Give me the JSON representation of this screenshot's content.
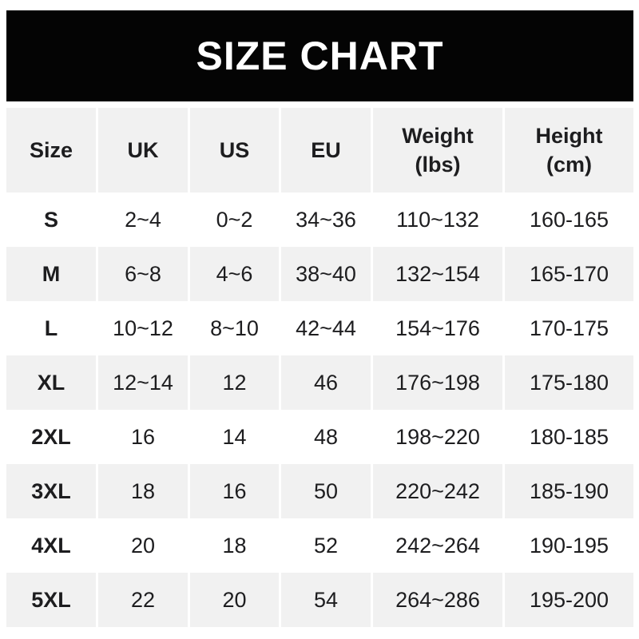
{
  "banner": {
    "title": "SIZE CHART",
    "background_color": "#040404",
    "text_color": "#ffffff"
  },
  "table": {
    "stripe_color": "#f1f1f1",
    "text_color": "#1d1d1f",
    "header": [
      {
        "label": "Size",
        "sub": ""
      },
      {
        "label": "UK",
        "sub": ""
      },
      {
        "label": "US",
        "sub": ""
      },
      {
        "label": "EU",
        "sub": ""
      },
      {
        "label": "Weight",
        "sub": "(lbs)"
      },
      {
        "label": "Height",
        "sub": "(cm)"
      }
    ]
  },
  "chart_data": {
    "type": "table",
    "title": "SIZE CHART",
    "columns": [
      "Size",
      "UK",
      "US",
      "EU",
      "Weight (lbs)",
      "Height (cm)"
    ],
    "rows": [
      [
        "S",
        "2~4",
        "0~2",
        "34~36",
        "110~132",
        "160-165"
      ],
      [
        "M",
        "6~8",
        "4~6",
        "38~40",
        "132~154",
        "165-170"
      ],
      [
        "L",
        "10~12",
        "8~10",
        "42~44",
        "154~176",
        "170-175"
      ],
      [
        "XL",
        "12~14",
        "12",
        "46",
        "176~198",
        "175-180"
      ],
      [
        "2XL",
        "16",
        "14",
        "48",
        "198~220",
        "180-185"
      ],
      [
        "3XL",
        "18",
        "16",
        "50",
        "220~242",
        "185-190"
      ],
      [
        "4XL",
        "20",
        "18",
        "52",
        "242~264",
        "190-195"
      ],
      [
        "5XL",
        "22",
        "20",
        "54",
        "264~286",
        "195-200"
      ]
    ],
    "layout": {
      "header_background": "#f1f1f1",
      "row_striping": "alternating white/gray starting white",
      "weight_range_separator": "~",
      "height_range_separator": "-"
    }
  }
}
